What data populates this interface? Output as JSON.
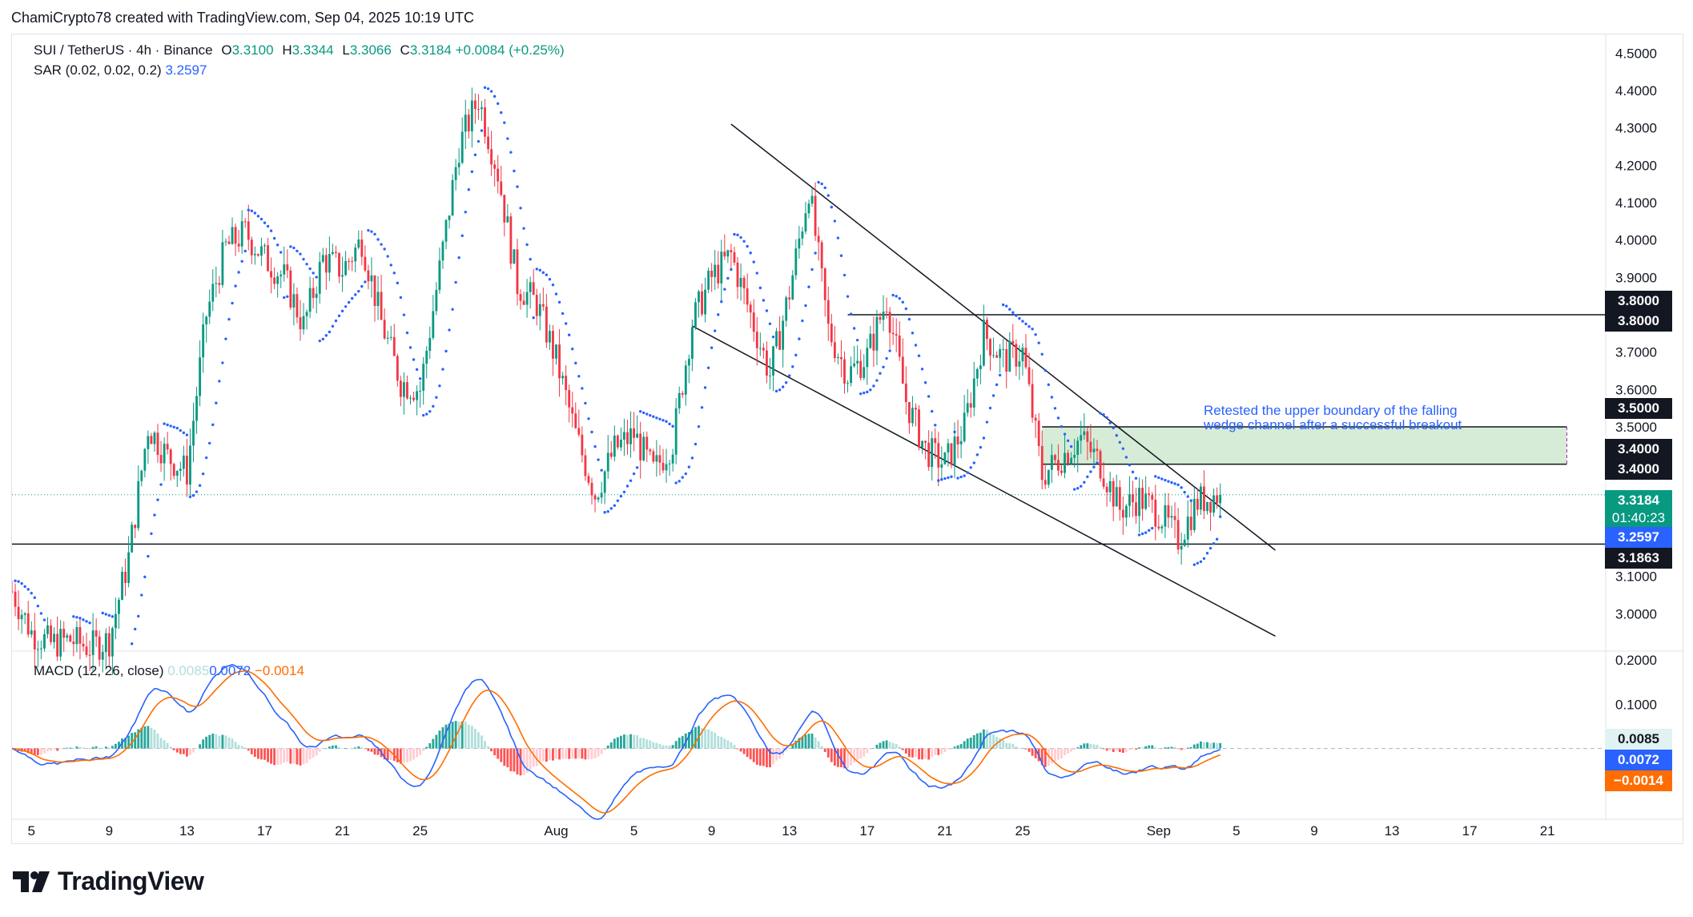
{
  "header": {
    "credit": "ChamiCrypto78 created with TradingView.com, Sep 04, 2025 10:19 UTC"
  },
  "legend": {
    "symbol": "SUI / TetherUS · 4h · Binance",
    "o_label": "O",
    "o_value": "3.3100",
    "h_label": "H",
    "h_value": "3.3344",
    "l_label": "L",
    "l_value": "3.3066",
    "c_label": "C",
    "c_value": "3.3184",
    "change": "+0.0084 (+0.25%)",
    "sar_label": "SAR (0.02, 0.02, 0.2)",
    "sar_value": "3.2597",
    "macd_label": "MACD (12, 26, close)",
    "macd_hist": "0.0085",
    "macd_line": "0.0072",
    "macd_signal": "−0.0014"
  },
  "annotation": {
    "line1": "Retested the upper boundary of the falling",
    "line2": "wedge channel after a successful breakout"
  },
  "price_tags": {
    "r380a": "3.8000",
    "r380b": "3.8000",
    "r350": "3.5000",
    "r340a": "3.4000",
    "r340b": "3.4000",
    "last": "3.3184",
    "countdown": "01:40:23",
    "sar": "3.2597",
    "support": "3.1863",
    "macd_hist": "0.0085",
    "macd_line": "0.0072",
    "macd_signal": "−0.0014"
  },
  "colors": {
    "up": "#089981",
    "down": "#f23645",
    "sar": "#2962ff",
    "macd": "#2962ff",
    "signal": "#ff6d00",
    "hist_up_strong": "#26a69a",
    "hist_up_weak": "#b2dfdb",
    "hist_down_strong": "#ff5252",
    "hist_down_weak": "#ffcdd2",
    "zone": "#c8e6c9",
    "lines": "#131722"
  },
  "logo": {
    "text": "TradingView",
    "icon": "tradingview-logo-icon"
  },
  "chart_data": {
    "type": "candlestick",
    "symbol": "SUI / TetherUS",
    "interval": "4h",
    "exchange": "Binance",
    "ylim": [
      2.9,
      4.55
    ],
    "y_ticks": [
      "4.5000",
      "4.4000",
      "4.3000",
      "4.2000",
      "4.1000",
      "4.0000",
      "3.9000",
      "3.8000",
      "3.7000",
      "3.6000",
      "3.5000",
      "3.4000",
      "3.3000",
      "3.2000",
      "3.1000",
      "3.0000"
    ],
    "x_ticks": [
      "5",
      "9",
      "13",
      "17",
      "21",
      "25",
      "Aug",
      "5",
      "9",
      "13",
      "17",
      "21",
      "25",
      "Sep",
      "5",
      "9",
      "13",
      "17",
      "21"
    ],
    "x_tick_dates": [
      "2025-07-05",
      "2025-07-09",
      "2025-07-13",
      "2025-07-17",
      "2025-07-21",
      "2025-07-25",
      "2025-08-01",
      "2025-08-05",
      "2025-08-09",
      "2025-08-13",
      "2025-08-17",
      "2025-08-21",
      "2025-08-25",
      "2025-09-01",
      "2025-09-05",
      "2025-09-09",
      "2025-09-13",
      "2025-09-17",
      "2025-09-21"
    ],
    "price_path": [
      [
        "2025-07-04",
        3.06
      ],
      [
        "2025-07-05",
        2.95
      ],
      [
        "2025-07-06",
        2.92
      ],
      [
        "2025-07-07",
        2.93
      ],
      [
        "2025-07-08",
        2.91
      ],
      [
        "2025-07-09",
        2.93
      ],
      [
        "2025-07-10",
        3.15
      ],
      [
        "2025-07-11",
        3.5
      ],
      [
        "2025-07-12",
        3.42
      ],
      [
        "2025-07-13",
        3.38
      ],
      [
        "2025-07-14",
        3.8
      ],
      [
        "2025-07-15",
        3.98
      ],
      [
        "2025-07-16",
        4.02
      ],
      [
        "2025-07-17",
        3.95
      ],
      [
        "2025-07-18",
        3.9
      ],
      [
        "2025-07-19",
        3.77
      ],
      [
        "2025-07-20",
        3.95
      ],
      [
        "2025-07-21",
        3.92
      ],
      [
        "2025-07-22",
        4.0
      ],
      [
        "2025-07-23",
        3.78
      ],
      [
        "2025-07-24",
        3.62
      ],
      [
        "2025-07-25",
        3.6
      ],
      [
        "2025-07-26",
        3.92
      ],
      [
        "2025-07-27",
        4.25
      ],
      [
        "2025-07-28",
        4.38
      ],
      [
        "2025-07-29",
        4.18
      ],
      [
        "2025-07-30",
        3.88
      ],
      [
        "2025-07-31",
        3.83
      ],
      [
        "2025-08-01",
        3.68
      ],
      [
        "2025-08-02",
        3.48
      ],
      [
        "2025-08-03",
        3.32
      ],
      [
        "2025-08-04",
        3.44
      ],
      [
        "2025-08-05",
        3.48
      ],
      [
        "2025-08-06",
        3.38
      ],
      [
        "2025-08-07",
        3.46
      ],
      [
        "2025-08-08",
        3.78
      ],
      [
        "2025-08-09",
        3.9
      ],
      [
        "2025-08-10",
        3.96
      ],
      [
        "2025-08-11",
        3.8
      ],
      [
        "2025-08-12",
        3.64
      ],
      [
        "2025-08-13",
        3.86
      ],
      [
        "2025-08-14",
        4.14
      ],
      [
        "2025-08-15",
        3.76
      ],
      [
        "2025-08-16",
        3.64
      ],
      [
        "2025-08-17",
        3.69
      ],
      [
        "2025-08-18",
        3.84
      ],
      [
        "2025-08-19",
        3.57
      ],
      [
        "2025-08-20",
        3.44
      ],
      [
        "2025-08-21",
        3.4
      ],
      [
        "2025-08-22",
        3.5
      ],
      [
        "2025-08-23",
        3.75
      ],
      [
        "2025-08-24",
        3.68
      ],
      [
        "2025-08-25",
        3.7
      ],
      [
        "2025-08-26",
        3.37
      ],
      [
        "2025-08-27",
        3.42
      ],
      [
        "2025-08-28",
        3.47
      ],
      [
        "2025-08-29",
        3.4
      ],
      [
        "2025-08-30",
        3.28
      ],
      [
        "2025-08-31",
        3.31
      ],
      [
        "2025-09-01",
        3.27
      ],
      [
        "2025-09-02",
        3.2
      ],
      [
        "2025-09-03",
        3.3
      ],
      [
        "2025-09-04",
        3.3184
      ]
    ],
    "horizontal_levels": [
      3.8,
      3.1863
    ],
    "zone": {
      "from": 3.4,
      "to": 3.5,
      "start": "2025-08-26",
      "end": "2025-09-22"
    },
    "trendlines": {
      "upper": [
        [
          "2025-08-10",
          4.31
        ],
        [
          "2025-09-07",
          3.17
        ]
      ],
      "lower": [
        [
          "2025-08-08",
          3.77
        ],
        [
          "2025-09-07",
          2.94
        ]
      ]
    },
    "last_close": 3.3184,
    "sar_last": 3.2597,
    "macd": {
      "params": "12, 26, close",
      "hist": 0.0085,
      "macd": 0.0072,
      "signal": -0.0014,
      "ylim": [
        -0.16,
        0.22
      ],
      "y_ticks": [
        "0.2000",
        "0.1000"
      ]
    }
  }
}
